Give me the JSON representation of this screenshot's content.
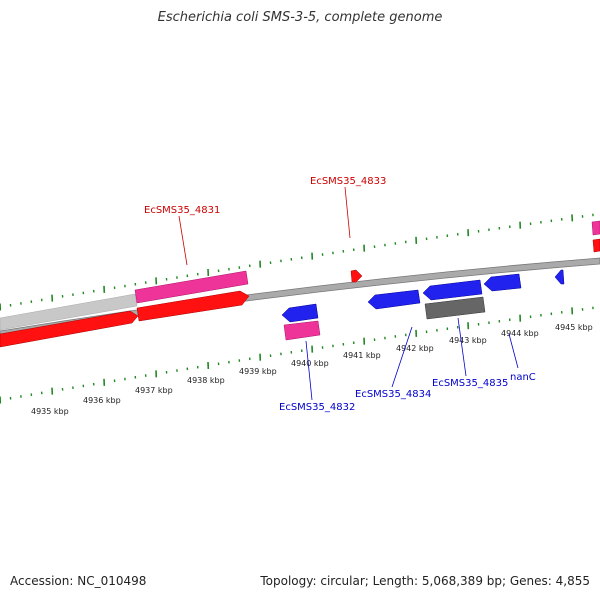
{
  "title": "Escherichia coli SMS-3-5, complete genome",
  "accession_text": "Accession: NC_010498",
  "summary_text": "Topology: circular; Length: 5,068,389 bp; Genes: 4,855",
  "colors": {
    "plus_strand_label": "#cc0000",
    "minus_strand_label": "#0000cc",
    "tick": "#228822",
    "axis": "#888888",
    "cds_plus": "#ee1111",
    "cds_minus": "#2222ee",
    "cds_pink": "#ee3399",
    "cds_gray": "#666666",
    "cds_lightgray": "#c8c8c8"
  },
  "ticks": {
    "kbp_labels": [
      "4935 kbp",
      "4936 kbp",
      "4937 kbp",
      "4938 kbp",
      "4939 kbp",
      "4940 kbp",
      "4941 kbp",
      "4942 kbp",
      "4943 kbp",
      "4944 kbp",
      "4945 kbp"
    ]
  },
  "gene_labels": {
    "plus": [
      "EcSMS35_4831",
      "EcSMS35_4833"
    ],
    "minus": [
      "EcSMS35_4832",
      "EcSMS35_4834",
      "EcSMS35_4835",
      "nanC"
    ]
  }
}
